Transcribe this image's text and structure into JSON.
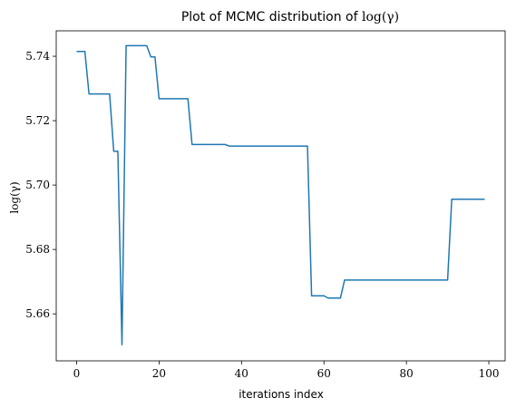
{
  "chart_data": {
    "type": "line",
    "title_text": "Plot of MCMC distribution of ",
    "title_math": "log(γ)",
    "xlabel": "iterations index",
    "ylabel": "log(γ)",
    "xlim": [
      -4.95,
      103.95
    ],
    "ylim": [
      5.6454,
      5.7479
    ],
    "xticks": [
      0,
      20,
      40,
      60,
      80,
      100
    ],
    "yticks": [
      5.66,
      5.68,
      5.7,
      5.72,
      5.74
    ],
    "ytick_labels": [
      "5.66",
      "5.68",
      "5.70",
      "5.72",
      "5.74"
    ],
    "grid": false,
    "line_color": "#1f77b4",
    "series": [
      {
        "x": [
          0,
          1,
          2,
          3,
          4,
          5,
          6,
          7,
          8,
          9,
          10,
          11,
          12,
          13,
          14,
          15,
          16,
          17,
          18,
          19,
          20,
          21,
          22,
          23,
          24,
          25,
          26,
          27,
          28,
          29,
          30,
          31,
          32,
          33,
          34,
          35,
          36,
          37,
          38,
          39,
          40,
          41,
          42,
          43,
          44,
          45,
          46,
          47,
          48,
          49,
          50,
          51,
          52,
          53,
          54,
          55,
          56,
          57,
          58,
          59,
          60,
          61,
          62,
          63,
          64,
          65,
          66,
          67,
          68,
          69,
          70,
          71,
          72,
          73,
          74,
          75,
          76,
          77,
          78,
          79,
          80,
          81,
          82,
          83,
          84,
          85,
          86,
          87,
          88,
          89,
          90,
          91,
          92,
          93,
          94,
          95,
          96,
          97,
          98,
          99
        ],
        "values": [
          5.7415,
          5.7415,
          5.7415,
          5.7283,
          5.7283,
          5.7283,
          5.7283,
          5.7283,
          5.7283,
          5.7105,
          5.7105,
          5.6504,
          5.7433,
          5.7433,
          5.7433,
          5.7433,
          5.7433,
          5.7433,
          5.7398,
          5.7398,
          5.7268,
          5.7268,
          5.7268,
          5.7268,
          5.7268,
          5.7268,
          5.7268,
          5.7268,
          5.7126,
          5.7126,
          5.7126,
          5.7126,
          5.7126,
          5.7126,
          5.7126,
          5.7126,
          5.7126,
          5.7121,
          5.7121,
          5.7121,
          5.7121,
          5.7121,
          5.7121,
          5.7121,
          5.7121,
          5.7121,
          5.7121,
          5.7121,
          5.7121,
          5.7121,
          5.7121,
          5.7121,
          5.7121,
          5.7121,
          5.7121,
          5.7121,
          5.7121,
          5.6656,
          5.6656,
          5.6656,
          5.6656,
          5.6649,
          5.6649,
          5.6649,
          5.6649,
          5.6705,
          5.6705,
          5.6705,
          5.6705,
          5.6705,
          5.6705,
          5.6705,
          5.6705,
          5.6705,
          5.6705,
          5.6705,
          5.6705,
          5.6705,
          5.6705,
          5.6705,
          5.6705,
          5.6705,
          5.6705,
          5.6705,
          5.6705,
          5.6705,
          5.6705,
          5.6705,
          5.6705,
          5.6705,
          5.6705,
          5.6956,
          5.6956,
          5.6956,
          5.6956,
          5.6956,
          5.6956,
          5.6956,
          5.6956,
          5.6956
        ]
      }
    ]
  }
}
